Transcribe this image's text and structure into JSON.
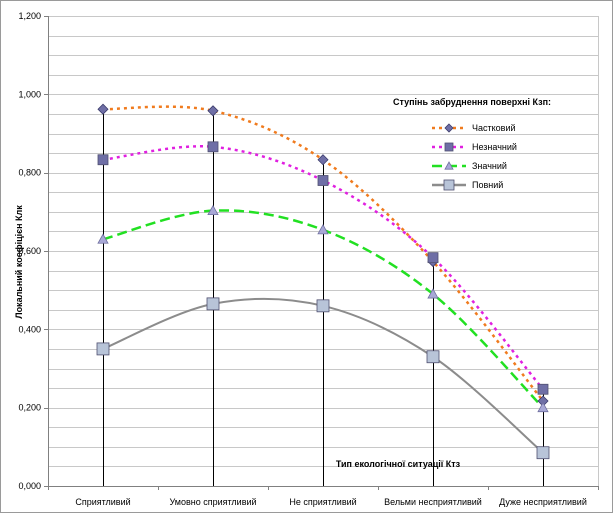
{
  "chart_data": {
    "type": "line",
    "categories": [
      "Сприятливий",
      "Умовно сприятливий",
      "Не сприятливий",
      "Вельми несприятливий",
      "Дуже несприятливий"
    ],
    "ylabel": "Локальний коефіцієн Клк",
    "xlabel": "Тип екологічної ситуації Ктз",
    "ylim": [
      0,
      1.2
    ],
    "yticks": [
      "0,000",
      "0,200",
      "0,400",
      "0,600",
      "0,800",
      "1,000",
      "1,200"
    ],
    "grid": true,
    "legend_title": "Ступінь забруднення поверхні Кзп:",
    "legend_position": "top-right",
    "series": [
      {
        "name": "Частковий",
        "values": [
          0.962,
          0.958,
          0.833,
          0.573,
          0.217
        ],
        "color": "#f07b1e",
        "marker": "diamond",
        "marker_color": "#6f6fa6",
        "dash": "dotted"
      },
      {
        "name": "Незначний",
        "values": [
          0.833,
          0.866,
          0.78,
          0.583,
          0.247
        ],
        "color": "#e020e0",
        "marker": "square",
        "marker_color": "#6f6fa6",
        "dash": "dotted"
      },
      {
        "name": "Значний",
        "values": [
          0.63,
          0.703,
          0.654,
          0.49,
          0.2
        ],
        "color": "#22e022",
        "marker": "triangle",
        "marker_color": "#a8a8d6",
        "dash": "dashed"
      },
      {
        "name": "Повний",
        "values": [
          0.35,
          0.465,
          0.46,
          0.33,
          0.085
        ],
        "color": "#8c8c8c",
        "marker": "square",
        "marker_color": "#b8c4d8",
        "dash": "solid"
      }
    ]
  }
}
